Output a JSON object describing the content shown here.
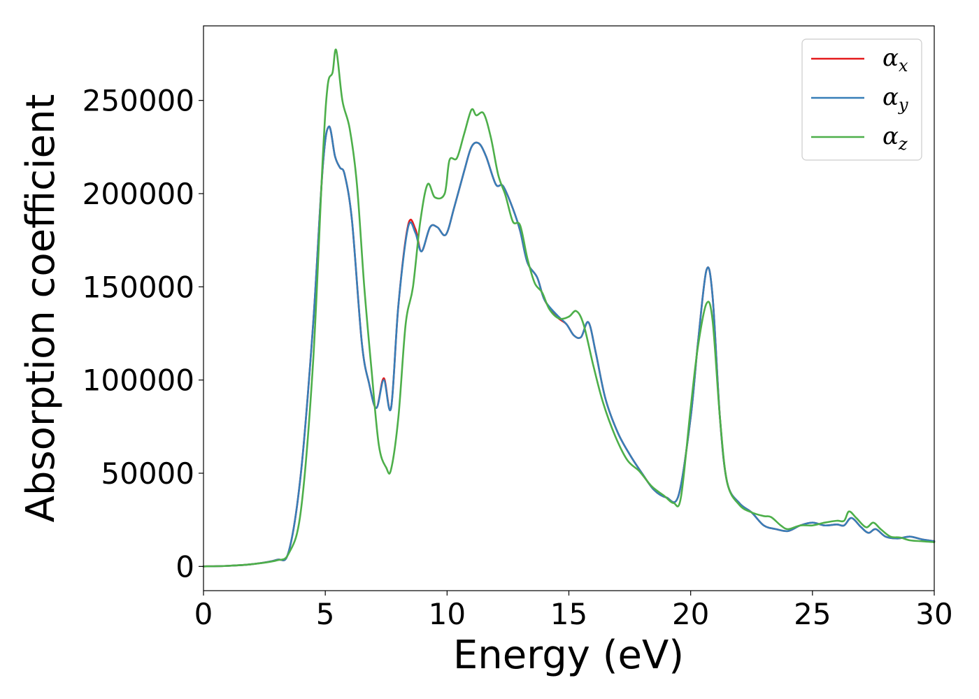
{
  "chart_data": {
    "type": "line",
    "title": "",
    "xlabel": "Energy (eV)",
    "ylabel": "Absorption coefficient",
    "xlim": [
      0,
      30
    ],
    "ylim": [
      -13000,
      290000
    ],
    "xticks": [
      0,
      5,
      10,
      15,
      20,
      25,
      30
    ],
    "xtick_labels": [
      "0",
      "5",
      "10",
      "15",
      "20",
      "25",
      "30"
    ],
    "yticks": [
      0,
      50000,
      100000,
      150000,
      200000,
      250000
    ],
    "ytick_labels": [
      "0",
      "50000",
      "100000",
      "150000",
      "200000",
      "250000"
    ],
    "grid": false,
    "legend_position": "top-right",
    "series": [
      {
        "name": "α_x",
        "legend_symbol": "α",
        "legend_subscript": "x",
        "color": "#e41a1c",
        "points": [
          [
            0,
            0
          ],
          [
            1,
            300
          ],
          [
            2,
            1200
          ],
          [
            3,
            3500
          ],
          [
            3.5,
            8000
          ],
          [
            4,
            50000
          ],
          [
            4.5,
            130000
          ],
          [
            4.9,
            215000
          ],
          [
            5.15,
            236000
          ],
          [
            5.4,
            220000
          ],
          [
            5.6,
            214000
          ],
          [
            5.8,
            210000
          ],
          [
            6.1,
            185000
          ],
          [
            6.5,
            120000
          ],
          [
            6.8,
            98000
          ],
          [
            7.1,
            85000
          ],
          [
            7.4,
            101000
          ],
          [
            7.7,
            85000
          ],
          [
            8.0,
            140000
          ],
          [
            8.4,
            183000
          ],
          [
            8.7,
            181000
          ],
          [
            8.95,
            169000
          ],
          [
            9.3,
            182000
          ],
          [
            9.6,
            182000
          ],
          [
            9.95,
            178000
          ],
          [
            10.3,
            193000
          ],
          [
            10.7,
            212000
          ],
          [
            11.0,
            225000
          ],
          [
            11.3,
            227000
          ],
          [
            11.6,
            220000
          ],
          [
            12.0,
            205000
          ],
          [
            12.3,
            204000
          ],
          [
            12.7,
            192000
          ],
          [
            13.0,
            180000
          ],
          [
            13.3,
            163000
          ],
          [
            13.7,
            155000
          ],
          [
            14.0,
            143000
          ],
          [
            14.5,
            134000
          ],
          [
            14.9,
            130000
          ],
          [
            15.2,
            124000
          ],
          [
            15.5,
            123000
          ],
          [
            15.8,
            131000
          ],
          [
            16.1,
            115000
          ],
          [
            16.5,
            90000
          ],
          [
            17.0,
            72000
          ],
          [
            17.5,
            60000
          ],
          [
            18.0,
            50000
          ],
          [
            18.5,
            41000
          ],
          [
            19.0,
            37000
          ],
          [
            19.5,
            38000
          ],
          [
            20.0,
            80000
          ],
          [
            20.3,
            120000
          ],
          [
            20.65,
            159000
          ],
          [
            20.9,
            145000
          ],
          [
            21.2,
            80000
          ],
          [
            21.5,
            45000
          ],
          [
            22.0,
            34000
          ],
          [
            22.5,
            29000
          ],
          [
            23.0,
            22000
          ],
          [
            23.5,
            20000
          ],
          [
            24.0,
            19000
          ],
          [
            24.5,
            22000
          ],
          [
            25.0,
            23500
          ],
          [
            25.5,
            22000
          ],
          [
            26.0,
            22500
          ],
          [
            26.3,
            22000
          ],
          [
            26.6,
            26000
          ],
          [
            27.0,
            21000
          ],
          [
            27.3,
            18000
          ],
          [
            27.6,
            20000
          ],
          [
            28.0,
            16000
          ],
          [
            28.5,
            15000
          ],
          [
            29.0,
            16000
          ],
          [
            29.5,
            14500
          ],
          [
            30.0,
            13500
          ]
        ]
      },
      {
        "name": "α_y",
        "legend_symbol": "α",
        "legend_subscript": "y",
        "color": "#377eb8",
        "points": [
          [
            0,
            0
          ],
          [
            1,
            300
          ],
          [
            2,
            1200
          ],
          [
            3,
            3500
          ],
          [
            3.5,
            8000
          ],
          [
            4,
            50000
          ],
          [
            4.5,
            130000
          ],
          [
            4.9,
            215000
          ],
          [
            5.15,
            236000
          ],
          [
            5.4,
            220000
          ],
          [
            5.6,
            214000
          ],
          [
            5.8,
            210000
          ],
          [
            6.1,
            185000
          ],
          [
            6.5,
            120000
          ],
          [
            6.8,
            98000
          ],
          [
            7.1,
            85000
          ],
          [
            7.4,
            100000
          ],
          [
            7.7,
            85000
          ],
          [
            8.0,
            140000
          ],
          [
            8.4,
            182000
          ],
          [
            8.7,
            179000
          ],
          [
            8.95,
            169000
          ],
          [
            9.3,
            182000
          ],
          [
            9.6,
            182000
          ],
          [
            9.95,
            178000
          ],
          [
            10.3,
            193000
          ],
          [
            10.7,
            212000
          ],
          [
            11.0,
            225000
          ],
          [
            11.3,
            227000
          ],
          [
            11.6,
            220000
          ],
          [
            12.0,
            205000
          ],
          [
            12.3,
            204000
          ],
          [
            12.7,
            192000
          ],
          [
            13.0,
            180000
          ],
          [
            13.3,
            163000
          ],
          [
            13.7,
            155000
          ],
          [
            14.0,
            143000
          ],
          [
            14.5,
            135000
          ],
          [
            14.9,
            130000
          ],
          [
            15.2,
            124000
          ],
          [
            15.5,
            123000
          ],
          [
            15.8,
            131000
          ],
          [
            16.1,
            115000
          ],
          [
            16.5,
            90000
          ],
          [
            17.0,
            72000
          ],
          [
            17.5,
            60000
          ],
          [
            18.0,
            50000
          ],
          [
            18.5,
            41000
          ],
          [
            19.0,
            37000
          ],
          [
            19.5,
            38000
          ],
          [
            20.0,
            80000
          ],
          [
            20.3,
            120000
          ],
          [
            20.65,
            159000
          ],
          [
            20.9,
            145000
          ],
          [
            21.2,
            80000
          ],
          [
            21.5,
            45000
          ],
          [
            22.0,
            34000
          ],
          [
            22.5,
            29000
          ],
          [
            23.0,
            22000
          ],
          [
            23.5,
            20000
          ],
          [
            24.0,
            19000
          ],
          [
            24.5,
            22000
          ],
          [
            25.0,
            23500
          ],
          [
            25.5,
            22000
          ],
          [
            26.0,
            22500
          ],
          [
            26.3,
            22000
          ],
          [
            26.6,
            26000
          ],
          [
            27.0,
            21000
          ],
          [
            27.3,
            18000
          ],
          [
            27.6,
            20000
          ],
          [
            28.0,
            16000
          ],
          [
            28.5,
            15000
          ],
          [
            29.0,
            16000
          ],
          [
            29.5,
            14500
          ],
          [
            30.0,
            13500
          ]
        ]
      },
      {
        "name": "α_z",
        "legend_symbol": "α",
        "legend_subscript": "z",
        "color": "#4daf4a",
        "points": [
          [
            0,
            0
          ],
          [
            1,
            300
          ],
          [
            2,
            1200
          ],
          [
            3,
            3200
          ],
          [
            3.5,
            7000
          ],
          [
            4,
            30000
          ],
          [
            4.5,
            110000
          ],
          [
            4.9,
            220000
          ],
          [
            5.1,
            258000
          ],
          [
            5.3,
            265000
          ],
          [
            5.45,
            277000
          ],
          [
            5.7,
            250000
          ],
          [
            6.0,
            235000
          ],
          [
            6.3,
            205000
          ],
          [
            6.6,
            150000
          ],
          [
            6.9,
            105000
          ],
          [
            7.2,
            65000
          ],
          [
            7.5,
            53000
          ],
          [
            7.7,
            52000
          ],
          [
            8.0,
            80000
          ],
          [
            8.3,
            130000
          ],
          [
            8.6,
            150000
          ],
          [
            8.9,
            185000
          ],
          [
            9.2,
            205000
          ],
          [
            9.5,
            198000
          ],
          [
            9.9,
            200000
          ],
          [
            10.1,
            218000
          ],
          [
            10.4,
            219000
          ],
          [
            10.7,
            232000
          ],
          [
            11.0,
            245000
          ],
          [
            11.2,
            242000
          ],
          [
            11.5,
            243000
          ],
          [
            11.8,
            230000
          ],
          [
            12.1,
            210000
          ],
          [
            12.4,
            199000
          ],
          [
            12.7,
            185000
          ],
          [
            13.0,
            183000
          ],
          [
            13.3,
            165000
          ],
          [
            13.6,
            152000
          ],
          [
            13.9,
            147000
          ],
          [
            14.2,
            138000
          ],
          [
            14.6,
            133000
          ],
          [
            15.0,
            134000
          ],
          [
            15.3,
            137000
          ],
          [
            15.6,
            130000
          ],
          [
            16.0,
            108000
          ],
          [
            16.4,
            88000
          ],
          [
            16.9,
            70000
          ],
          [
            17.4,
            57000
          ],
          [
            17.9,
            51000
          ],
          [
            18.4,
            43000
          ],
          [
            18.9,
            38000
          ],
          [
            19.3,
            34000
          ],
          [
            19.6,
            37000
          ],
          [
            20.0,
            85000
          ],
          [
            20.3,
            118000
          ],
          [
            20.65,
            141000
          ],
          [
            20.9,
            132000
          ],
          [
            21.2,
            80000
          ],
          [
            21.5,
            45000
          ],
          [
            22.0,
            33000
          ],
          [
            22.5,
            29000
          ],
          [
            23.0,
            27000
          ],
          [
            23.3,
            26500
          ],
          [
            23.7,
            22000
          ],
          [
            24.0,
            20000
          ],
          [
            24.5,
            22000
          ],
          [
            25.0,
            22000
          ],
          [
            25.5,
            23500
          ],
          [
            26.0,
            24500
          ],
          [
            26.3,
            24500
          ],
          [
            26.5,
            29500
          ],
          [
            26.8,
            26000
          ],
          [
            27.2,
            21000
          ],
          [
            27.5,
            23500
          ],
          [
            27.8,
            20000
          ],
          [
            28.2,
            16000
          ],
          [
            28.6,
            15500
          ],
          [
            29.0,
            14000
          ],
          [
            29.5,
            13500
          ],
          [
            30.0,
            13000
          ]
        ]
      }
    ]
  }
}
